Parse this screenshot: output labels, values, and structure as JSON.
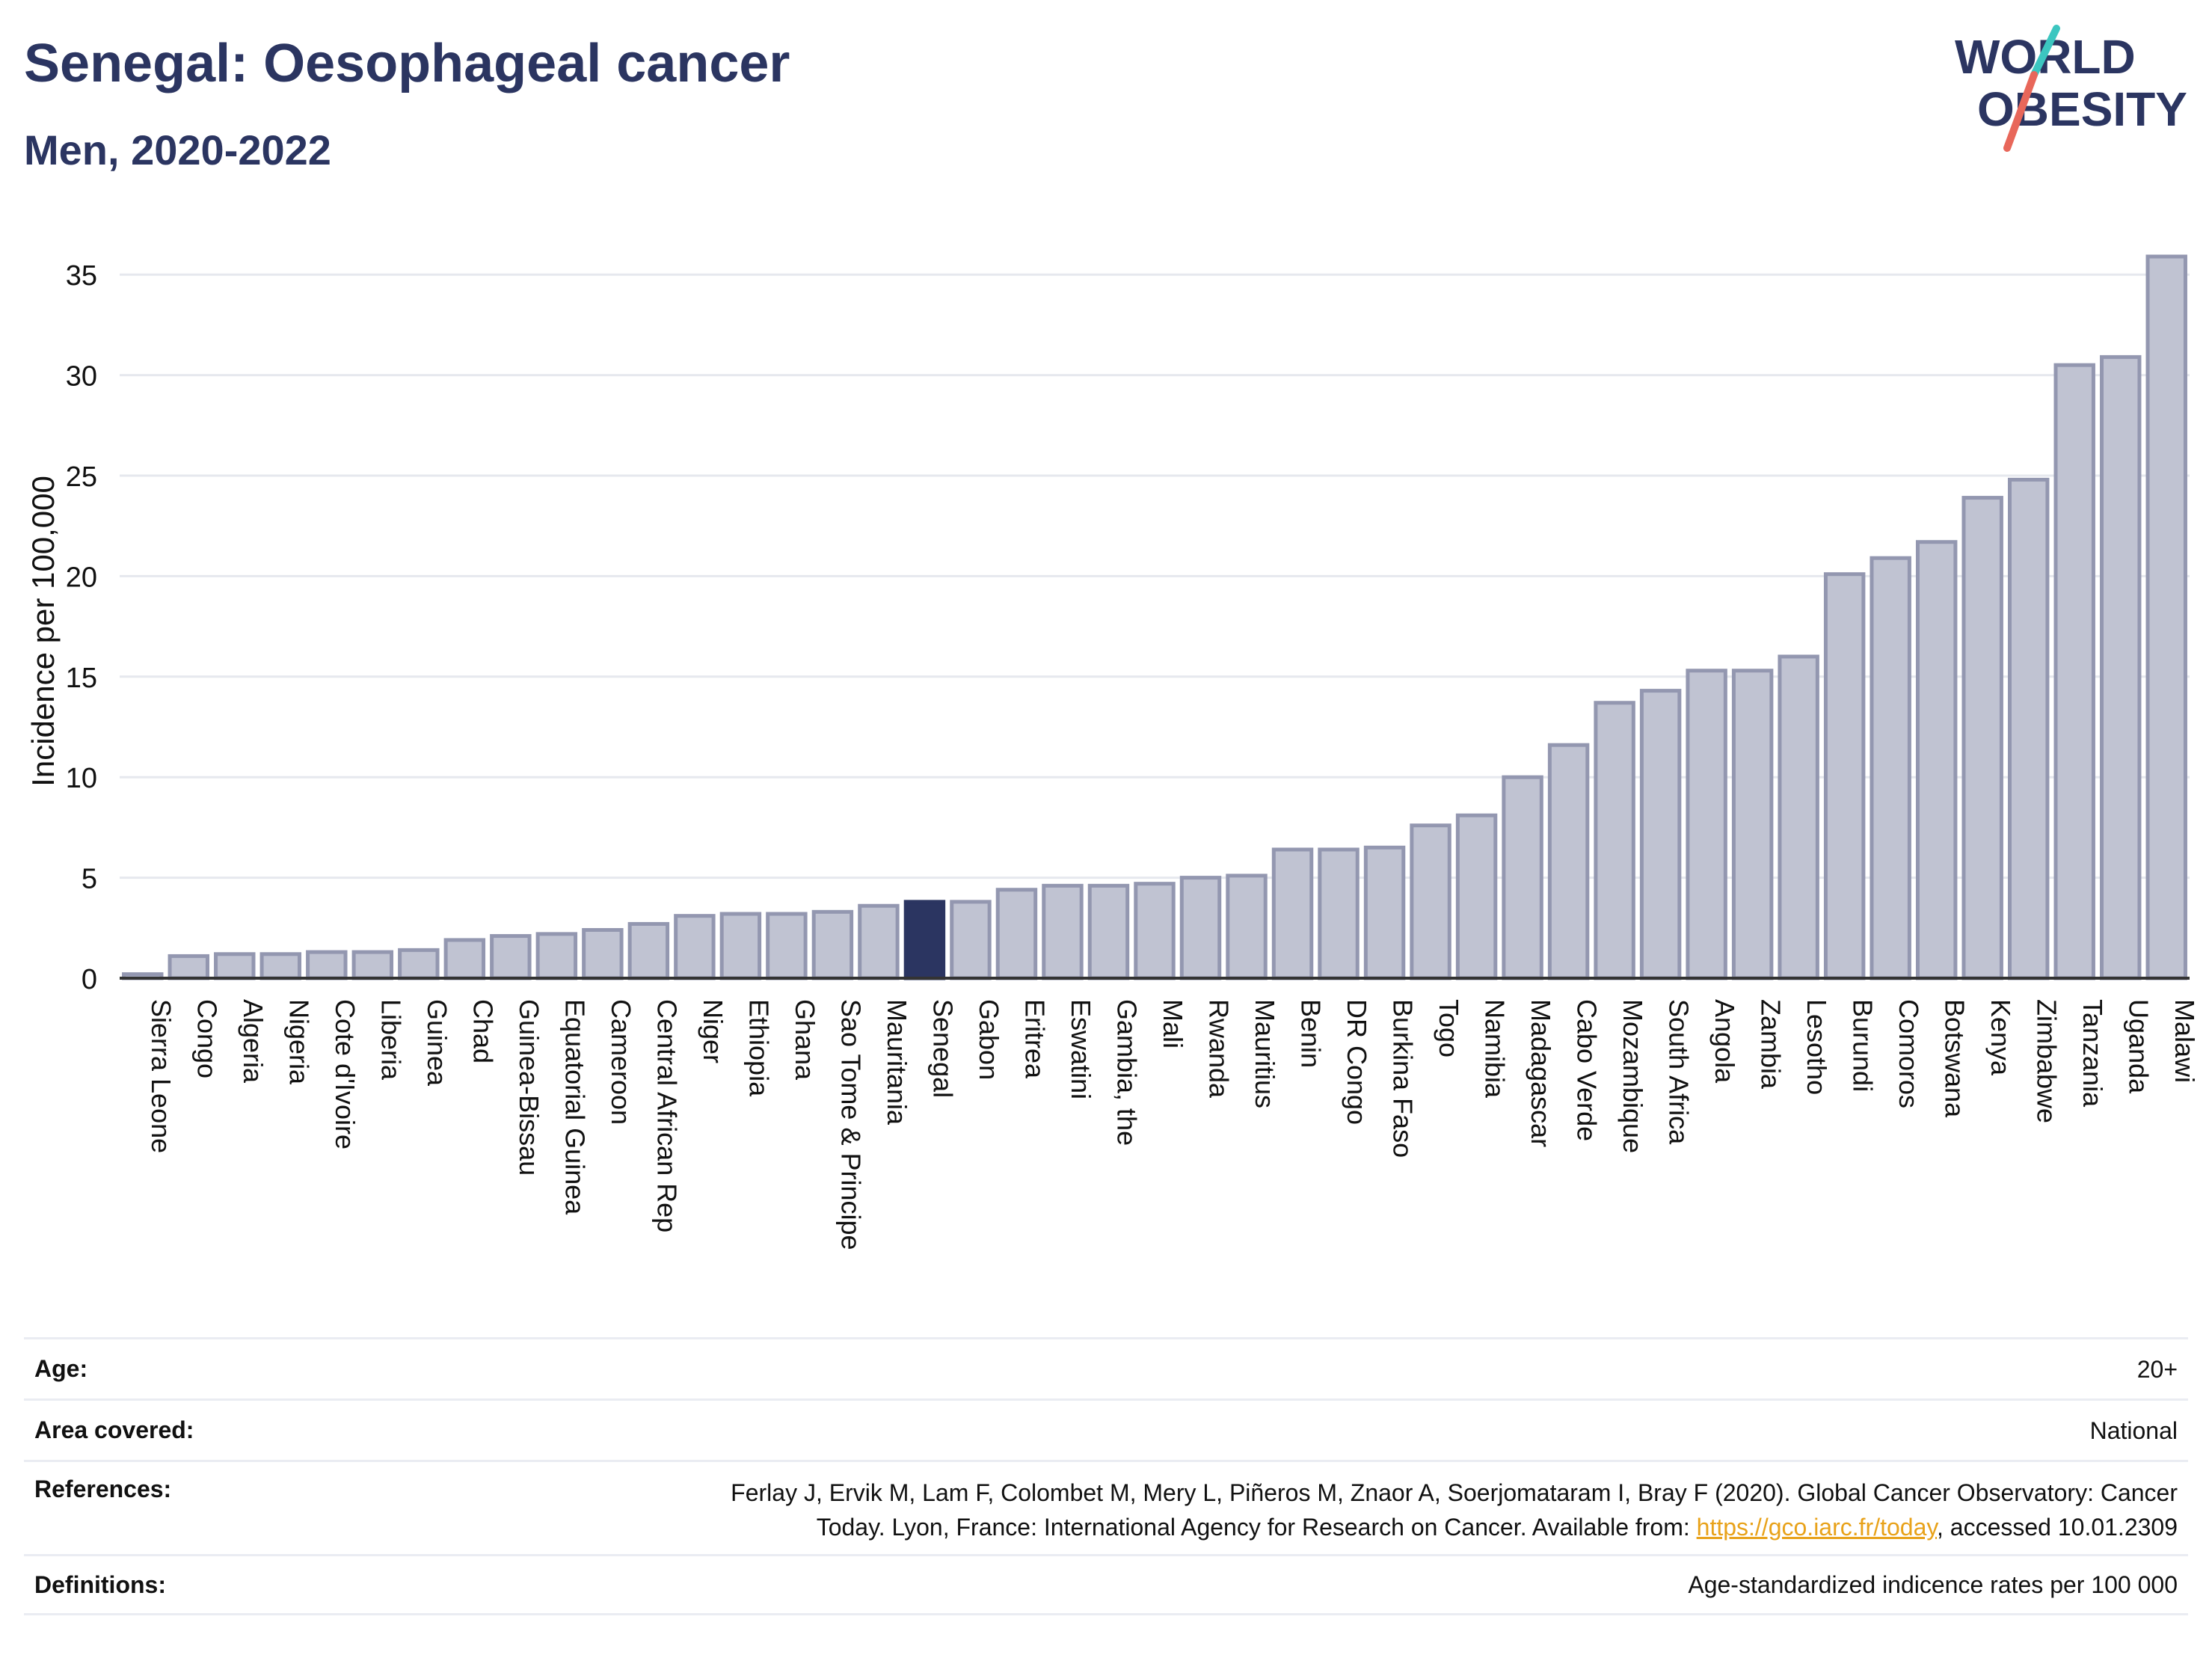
{
  "header": {
    "title": "Senegal: Oesophageal cancer",
    "subtitle": "Men, 2020-2022"
  },
  "logo": {
    "line1": "WORLD",
    "line2": "OBESITY",
    "colors": {
      "text": "#2b3561",
      "slash_red": "#e8675a",
      "slash_teal": "#3cc6c0"
    }
  },
  "chart_data": {
    "type": "bar",
    "title": "Senegal: Oesophageal cancer",
    "subtitle": "Men, 2020-2022",
    "xlabel": "",
    "ylabel": "Incidence per 100,000",
    "ylim": [
      0,
      37.5
    ],
    "yticks": [
      0,
      5,
      10,
      15,
      20,
      25,
      30,
      35
    ],
    "grid": true,
    "highlight": "Senegal",
    "colors": {
      "bar": "#c0c3d2",
      "bar_border": "#9397b0",
      "highlight": "#2b3561"
    },
    "categories": [
      "Sierra Leone",
      "Congo",
      "Algeria",
      "Nigeria",
      "Cote d'Ivoire",
      "Liberia",
      "Guinea",
      "Chad",
      "Guinea-Bissau",
      "Equatorial Guinea",
      "Cameroon",
      "Central African Rep",
      "Niger",
      "Ethiopia",
      "Ghana",
      "Sao Tome & Principe",
      "Mauritania",
      "Senegal",
      "Gabon",
      "Eritrea",
      "Eswatini",
      "Gambia, the",
      "Mali",
      "Rwanda",
      "Mauritius",
      "Benin",
      "DR Congo",
      "Burkina Faso",
      "Togo",
      "Namibia",
      "Madagascar",
      "Cabo Verde",
      "Mozambique",
      "South Africa",
      "Angola",
      "Zambia",
      "Lesotho",
      "Burundi",
      "Comoros",
      "Botswana",
      "Kenya",
      "Zimbabwe",
      "Tanzania",
      "Uganda",
      "Malawi"
    ],
    "values": [
      0.2,
      1.1,
      1.2,
      1.2,
      1.3,
      1.3,
      1.4,
      1.9,
      2.1,
      2.2,
      2.4,
      2.7,
      3.1,
      3.2,
      3.2,
      3.3,
      3.6,
      3.8,
      3.8,
      4.4,
      4.6,
      4.6,
      4.7,
      5.0,
      5.1,
      6.4,
      6.4,
      6.5,
      7.6,
      8.1,
      10.0,
      11.6,
      13.7,
      14.3,
      15.3,
      15.3,
      16.0,
      20.1,
      20.9,
      21.7,
      23.9,
      24.8,
      30.5,
      30.9,
      35.9
    ]
  },
  "meta": {
    "age": {
      "label": "Age:",
      "value": "20+"
    },
    "area": {
      "label": "Area covered:",
      "value": "National"
    },
    "references": {
      "label": "References:",
      "text_1": "Ferlay J, Ervik M, Lam F, Colombet M, Mery L, Piñeros M, Znaor A, Soerjomataram I, Bray F (2020). Global Cancer Observatory: Cancer",
      "text_2": "Today. Lyon, France: International Agency for Research on Cancer. Available from: ",
      "link": "https://gco.iarc.fr/today",
      "text_3": ", accessed 10.01.2309"
    },
    "definitions": {
      "label": "Definitions:",
      "value": "Age-standardized indicence rates per 100 000"
    }
  }
}
